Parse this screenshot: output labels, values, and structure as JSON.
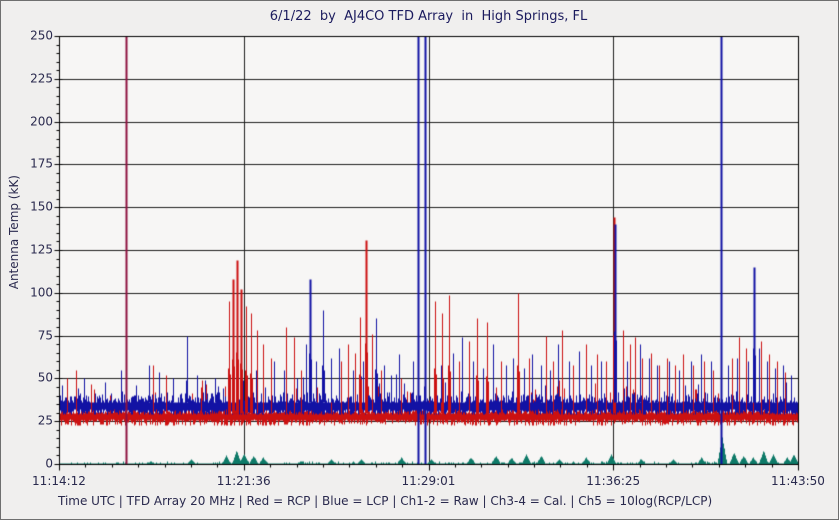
{
  "window": {
    "bg": "#f0efee",
    "plot_bg": "#f7f6f5",
    "grid_color": "#1e1e1e",
    "frame_color": "#000000",
    "text_color": "#2a2a4e",
    "title_color": "#1b1b5e"
  },
  "status_bar": {
    "text": "Time UTC | TFD Array 20 MHz | Red = RCP | Blue = LCP | Ch1-2 = Raw | Ch3-4 = Cal. | Ch5 = 10log(RCP/LCP)"
  },
  "chart_data": {
    "type": "line",
    "title": "6/1/22  by  AJ4CO TFD Array  in  High Springs, FL",
    "ylabel": "Antenna Temp (kK)",
    "xlabel": "Time UTC",
    "ylim": [
      0,
      250
    ],
    "y_tick_step": 25,
    "y_minor_step": 5,
    "x_tick_labels": [
      "11:14:12",
      "11:21:36",
      "11:29:01",
      "11:36:25",
      "11:43:50"
    ],
    "x_minor_per_interval": 6,
    "grid": true,
    "legend_position": "status-bar",
    "noise_seed": 1234567,
    "series": [
      {
        "name": "RCP (Red, Ch1-2 Raw)",
        "color": "#cc1111",
        "baseline": 30,
        "band": [
          23,
          42
        ],
        "spikes": [
          [
            0.011,
            50
          ],
          [
            0.023,
            55
          ],
          [
            0.043,
            47
          ],
          [
            0.127,
            58
          ],
          [
            0.145,
            52
          ],
          [
            0.192,
            45
          ],
          [
            0.23,
            95
          ],
          [
            0.235,
            108
          ],
          [
            0.241,
            119
          ],
          [
            0.246,
            102
          ],
          [
            0.253,
            92
          ],
          [
            0.26,
            88
          ],
          [
            0.268,
            78
          ],
          [
            0.276,
            70
          ],
          [
            0.287,
            62
          ],
          [
            0.307,
            80
          ],
          [
            0.318,
            74
          ],
          [
            0.327,
            55
          ],
          [
            0.368,
            58
          ],
          [
            0.382,
            60
          ],
          [
            0.391,
            70
          ],
          [
            0.401,
            65
          ],
          [
            0.407,
            86
          ],
          [
            0.415,
            131
          ],
          [
            0.424,
            76
          ],
          [
            0.436,
            55
          ],
          [
            0.463,
            50
          ],
          [
            0.509,
            95
          ],
          [
            0.518,
            88
          ],
          [
            0.528,
            99
          ],
          [
            0.541,
            60
          ],
          [
            0.555,
            72
          ],
          [
            0.566,
            85
          ],
          [
            0.579,
            83
          ],
          [
            0.598,
            60
          ],
          [
            0.621,
            100
          ],
          [
            0.636,
            62
          ],
          [
            0.659,
            75
          ],
          [
            0.668,
            60
          ],
          [
            0.681,
            78
          ],
          [
            0.696,
            58
          ],
          [
            0.713,
            70
          ],
          [
            0.728,
            64
          ],
          [
            0.74,
            60
          ],
          [
            0.751,
            144
          ],
          [
            0.763,
            78
          ],
          [
            0.773,
            70
          ],
          [
            0.78,
            74
          ],
          [
            0.789,
            62
          ],
          [
            0.801,
            65
          ],
          [
            0.812,
            58
          ],
          [
            0.823,
            62
          ],
          [
            0.834,
            58
          ],
          [
            0.844,
            64
          ],
          [
            0.858,
            58
          ],
          [
            0.873,
            60
          ],
          [
            0.885,
            55
          ],
          [
            0.911,
            62
          ],
          [
            0.92,
            74
          ],
          [
            0.93,
            68
          ],
          [
            0.939,
            60
          ],
          [
            0.95,
            72
          ],
          [
            0.961,
            64
          ],
          [
            0.971,
            60
          ],
          [
            0.982,
            54
          ]
        ]
      },
      {
        "name": "LCP (Blue, Ch1-2 Raw)",
        "color": "#1212a4",
        "baseline": 36,
        "band": [
          29,
          46
        ],
        "spikes": [
          [
            0.062,
            48
          ],
          [
            0.084,
            55
          ],
          [
            0.122,
            58
          ],
          [
            0.135,
            54
          ],
          [
            0.154,
            50
          ],
          [
            0.173,
            75
          ],
          [
            0.187,
            52
          ],
          [
            0.211,
            50
          ],
          [
            0.267,
            55
          ],
          [
            0.291,
            60
          ],
          [
            0.304,
            55
          ],
          [
            0.322,
            50
          ],
          [
            0.334,
            70
          ],
          [
            0.34,
            108
          ],
          [
            0.348,
            60
          ],
          [
            0.357,
            90
          ],
          [
            0.368,
            62
          ],
          [
            0.379,
            68
          ],
          [
            0.398,
            55
          ],
          [
            0.411,
            60
          ],
          [
            0.429,
            85
          ],
          [
            0.44,
            58
          ],
          [
            0.449,
            52
          ],
          [
            0.46,
            64
          ],
          [
            0.479,
            60
          ],
          [
            0.517,
            58
          ],
          [
            0.533,
            65
          ],
          [
            0.545,
            74
          ],
          [
            0.56,
            60
          ],
          [
            0.574,
            56
          ],
          [
            0.587,
            70
          ],
          [
            0.605,
            58
          ],
          [
            0.614,
            62
          ],
          [
            0.629,
            56
          ],
          [
            0.64,
            64
          ],
          [
            0.652,
            58
          ],
          [
            0.664,
            55
          ],
          [
            0.675,
            70
          ],
          [
            0.69,
            60
          ],
          [
            0.704,
            66
          ],
          [
            0.72,
            58
          ],
          [
            0.733,
            60
          ],
          [
            0.752,
            140
          ],
          [
            0.769,
            60
          ],
          [
            0.786,
            70
          ],
          [
            0.798,
            62
          ],
          [
            0.809,
            58
          ],
          [
            0.825,
            60
          ],
          [
            0.839,
            55
          ],
          [
            0.855,
            60
          ],
          [
            0.869,
            64
          ],
          [
            0.882,
            60
          ],
          [
            0.905,
            58
          ],
          [
            0.917,
            62
          ],
          [
            0.932,
            60
          ],
          [
            0.94,
            115
          ],
          [
            0.947,
            68
          ],
          [
            0.958,
            60
          ],
          [
            0.969,
            56
          ],
          [
            0.98,
            58
          ],
          [
            0.99,
            52
          ]
        ]
      },
      {
        "name": "Ch5 = 10log(RCP/LCP)",
        "color": "#0e7a68",
        "baseline": 0.8,
        "band": [
          0,
          2
        ],
        "spikes": [
          [
            0.124,
            2
          ],
          [
            0.179,
            3
          ],
          [
            0.226,
            5
          ],
          [
            0.24,
            8
          ],
          [
            0.25,
            6
          ],
          [
            0.263,
            5
          ],
          [
            0.276,
            4
          ],
          [
            0.327,
            2
          ],
          [
            0.368,
            3
          ],
          [
            0.409,
            3
          ],
          [
            0.463,
            4
          ],
          [
            0.503,
            3
          ],
          [
            0.557,
            4
          ],
          [
            0.591,
            5
          ],
          [
            0.612,
            4
          ],
          [
            0.632,
            6
          ],
          [
            0.652,
            5
          ],
          [
            0.677,
            3
          ],
          [
            0.713,
            4
          ],
          [
            0.747,
            6
          ],
          [
            0.787,
            3
          ],
          [
            0.831,
            3
          ],
          [
            0.869,
            4
          ],
          [
            0.897,
            16
          ],
          [
            0.913,
            7
          ],
          [
            0.926,
            5
          ],
          [
            0.939,
            4
          ],
          [
            0.953,
            8
          ],
          [
            0.966,
            6
          ],
          [
            0.985,
            4
          ],
          [
            0.994,
            6
          ]
        ]
      }
    ],
    "full_scale_events": [
      {
        "f": 0.091,
        "color": "#8e1240"
      },
      {
        "f": 0.486,
        "color": "#1212a4"
      },
      {
        "f": 0.495,
        "color": "#1212a4"
      },
      {
        "f": 0.896,
        "color": "#1212a4"
      }
    ]
  }
}
